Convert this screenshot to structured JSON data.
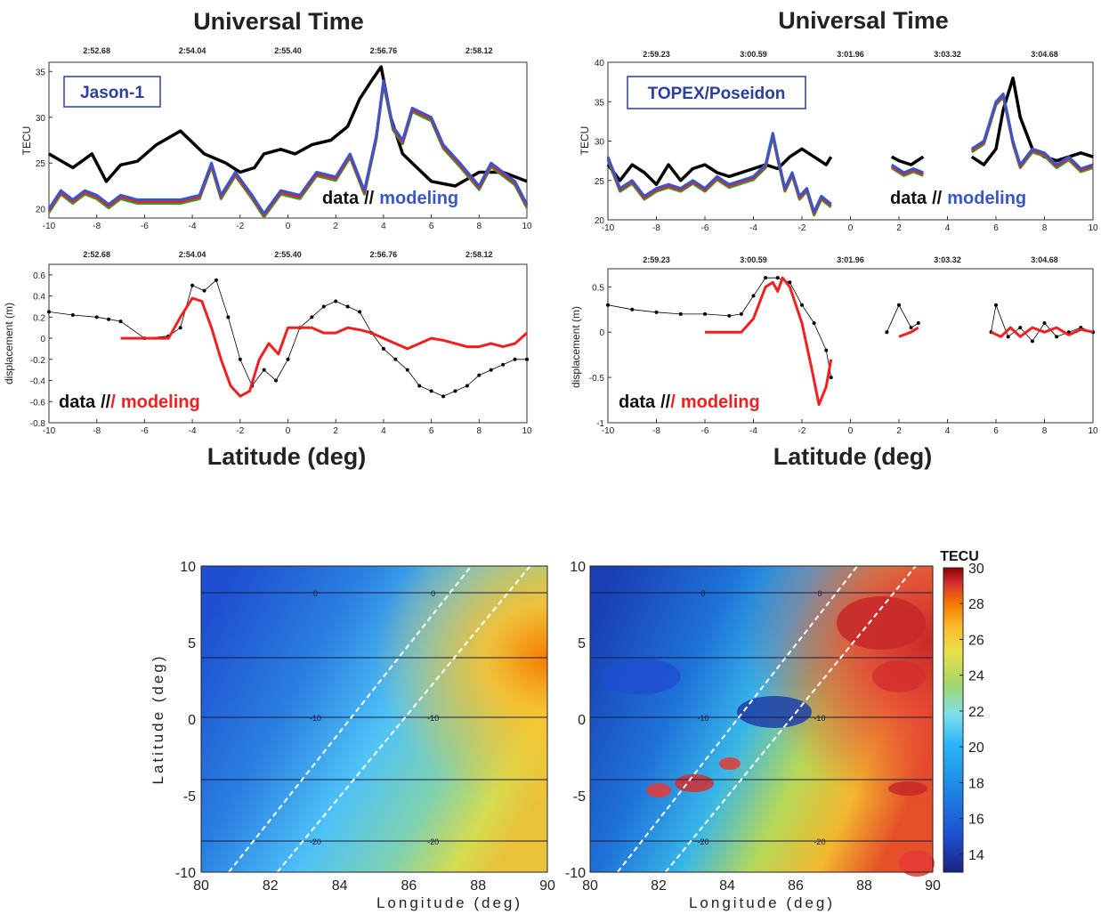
{
  "panels": [
    {
      "title": "Universal Time",
      "xlabel": "Latitude (deg)",
      "satellite": "Jason-1",
      "ut_ticks": [
        "2:52.68",
        "2:54.04",
        "2:55.40",
        "2:56.76",
        "2:58.12"
      ],
      "tec": {
        "ylabel": "TECU",
        "yticks": [
          "20",
          "25",
          "30",
          "35"
        ],
        "ylim": [
          19,
          36
        ],
        "legend": {
          "data": "data",
          "sep": "//",
          "sep2": "/",
          "model": "modeling"
        }
      },
      "disp": {
        "ylabel": "displacement (m)",
        "yticks": [
          "-0.8",
          "-0.6",
          "-0.4",
          "-0.2",
          "0",
          "0.2",
          "0.4",
          "0.6"
        ],
        "ylim": [
          -0.8,
          0.7
        ],
        "legend": {
          "data": "data",
          "sep": "//",
          "sep2": "/",
          "model": "modeling"
        }
      },
      "xticks": [
        "-10",
        "-8",
        "-6",
        "-4",
        "-2",
        "0",
        "2",
        "4",
        "6",
        "8",
        "10"
      ]
    },
    {
      "title": "Universal Time",
      "xlabel": "Latitude (deg)",
      "satellite": "TOPEX/Poseidon",
      "ut_ticks": [
        "2:59.23",
        "3:00.59",
        "3:01.96",
        "3:03.32",
        "3:04.68"
      ],
      "tec": {
        "ylabel": "TECU",
        "yticks": [
          "20",
          "25",
          "30",
          "35",
          "40"
        ],
        "ylim": [
          20,
          40
        ],
        "legend": {
          "data": "data",
          "sep": "//",
          "sep2": "/",
          "model": "modeling"
        }
      },
      "disp": {
        "ylabel": "displacement (m)",
        "yticks": [
          "-1",
          "-0.5",
          "0",
          "0.5"
        ],
        "ylim": [
          -1,
          0.7
        ],
        "legend": {
          "data": "data",
          "sep": "//",
          "sep2": "/",
          "model": "modeling"
        }
      },
      "xticks": [
        "-10",
        "-8",
        "-6",
        "-4",
        "-2",
        "0",
        "2",
        "4",
        "6",
        "8",
        "10"
      ]
    }
  ],
  "maps": {
    "ylabel": "Latitude (deg)",
    "xlabel": "Longitude (deg)",
    "yticks": [
      "10",
      "5",
      "0",
      "-5",
      "-10"
    ],
    "xticks": [
      "80",
      "82",
      "84",
      "86",
      "88",
      "90"
    ],
    "contour_labels": [
      "0",
      "-10",
      "-20"
    ],
    "colorbar": {
      "title": "TECU",
      "ticks": [
        "30",
        "28",
        "26",
        "24",
        "22",
        "20",
        "18",
        "16",
        "14"
      ],
      "range": [
        13,
        30
      ],
      "colors": [
        "#1a237e",
        "#1e4fd0",
        "#1e88e5",
        "#29b6f6",
        "#4dd0e1",
        "#80deea",
        "#a5d66a",
        "#e6e04a",
        "#fbc02d",
        "#f57c00",
        "#d32f2f",
        "#8b0000"
      ]
    }
  },
  "series_colors": {
    "data": "#000000",
    "model_red": "#f02020",
    "model_green": "#2ca02c",
    "model_blue": "#3a55c9"
  },
  "chart_data": [
    {
      "type": "line",
      "satellite": "Jason-1",
      "xlabel": "Latitude (deg)",
      "ylabel": "TECU",
      "xlim": [
        -10,
        10
      ],
      "ylim": [
        19,
        36
      ],
      "series": [
        {
          "name": "data",
          "x": [
            -10,
            -9,
            -8.2,
            -7.6,
            -7,
            -6.3,
            -5.5,
            -4.5,
            -3.5,
            -2.6,
            -2,
            -1.4,
            -1,
            -0.3,
            0.3,
            1,
            1.8,
            2.5,
            3,
            3.5,
            3.9,
            4.3,
            4.8,
            5,
            6,
            7,
            8,
            9,
            10
          ],
          "y": [
            26,
            24.5,
            26,
            23,
            24.8,
            25.2,
            27,
            28.5,
            26,
            25,
            24,
            24.5,
            26,
            26.5,
            26,
            27,
            27.5,
            29,
            32,
            34,
            35.5,
            30,
            26,
            25.5,
            23,
            22.5,
            24,
            24,
            23
          ]
        },
        {
          "name": "modeling",
          "x": [
            -10,
            -9.5,
            -9,
            -8.5,
            -8,
            -7.5,
            -7,
            -6.3,
            -5.5,
            -4.5,
            -3.7,
            -3.2,
            -2.8,
            -2.2,
            -1.5,
            -1,
            -0.3,
            0.5,
            1.2,
            2,
            2.6,
            3.2,
            3.7,
            4,
            4.4,
            4.8,
            5.2,
            6,
            6.5,
            7.2,
            8,
            8.5,
            9,
            9.5,
            10
          ],
          "y": [
            20,
            22,
            21,
            22,
            21.5,
            20.5,
            21.5,
            21,
            21,
            21,
            21.5,
            25,
            21.5,
            24,
            21.5,
            19.5,
            22,
            21.5,
            24,
            23.5,
            26,
            22,
            28,
            34,
            29,
            27.5,
            31,
            30,
            27,
            25,
            22.5,
            25,
            24,
            23,
            20.5
          ]
        }
      ]
    },
    {
      "type": "line",
      "satellite": "Jason-1",
      "xlabel": "Latitude (deg)",
      "ylabel": "displacement (m)",
      "xlim": [
        -10,
        10
      ],
      "ylim": [
        -0.8,
        0.7
      ],
      "series": [
        {
          "name": "data",
          "x": [
            -10,
            -9,
            -8,
            -7.5,
            -7,
            -6,
            -5,
            -4.5,
            -4,
            -3.5,
            -3,
            -2.5,
            -2,
            -1.5,
            -1,
            -0.5,
            0,
            0.5,
            1,
            1.5,
            2,
            2.5,
            3,
            3.5,
            4,
            4.5,
            5,
            5.5,
            6,
            6.5,
            7,
            7.5,
            8,
            8.5,
            9,
            9.5,
            10
          ],
          "y": [
            0.25,
            0.22,
            0.2,
            0.18,
            0.16,
            0.0,
            0.02,
            0.1,
            0.5,
            0.45,
            0.55,
            0.2,
            -0.2,
            -0.45,
            -0.3,
            -0.4,
            -0.2,
            0.1,
            0.2,
            0.3,
            0.35,
            0.3,
            0.25,
            0.05,
            -0.1,
            -0.2,
            -0.3,
            -0.45,
            -0.5,
            -0.55,
            -0.5,
            -0.45,
            -0.35,
            -0.3,
            -0.25,
            -0.2,
            -0.2
          ]
        },
        {
          "name": "modeling",
          "x": [
            -10,
            -7,
            -6.2,
            -5,
            -4.5,
            -4,
            -3.6,
            -3.2,
            -2.8,
            -2.4,
            -2,
            -1.6,
            -1.2,
            -0.8,
            -0.4,
            0,
            0.5,
            1,
            1.5,
            2,
            2.5,
            3,
            3.5,
            4,
            4.5,
            5,
            5.5,
            6,
            6.5,
            7,
            7.5,
            8,
            8.5,
            9,
            9.5,
            10
          ],
          "y": [
            0.0,
            0.0,
            0.0,
            0.0,
            0.2,
            0.38,
            0.35,
            0.1,
            -0.2,
            -0.45,
            -0.55,
            -0.5,
            -0.2,
            -0.05,
            -0.15,
            0.1,
            0.1,
            0.1,
            0.05,
            0.05,
            0.1,
            0.08,
            0.05,
            0.0,
            -0.05,
            -0.1,
            -0.05,
            0.0,
            -0.02,
            -0.05,
            -0.08,
            -0.08,
            -0.05,
            -0.08,
            -0.05,
            0.05
          ]
        }
      ]
    },
    {
      "type": "line",
      "satellite": "TOPEX/Poseidon",
      "xlabel": "Latitude (deg)",
      "ylabel": "TECU",
      "xlim": [
        -10,
        10
      ],
      "ylim": [
        20,
        40
      ],
      "series": [
        {
          "name": "data",
          "x": [
            -10,
            -9.5,
            -9,
            -8.5,
            -8,
            -7.5,
            -7,
            -6.5,
            -6,
            -5.5,
            -5,
            -4.5,
            -4,
            -3.5,
            -3,
            -2.5,
            -2,
            -1.5,
            -1,
            -0.8,
            1.7,
            2,
            2.5,
            3,
            5,
            5.5,
            6,
            6.3,
            6.7,
            7,
            7.5,
            8,
            8.5,
            9,
            9.5,
            10
          ],
          "y": [
            27,
            25,
            27,
            26,
            24.5,
            27,
            25,
            26.5,
            27,
            26,
            25.5,
            26,
            26.5,
            27,
            26.5,
            28,
            29,
            28,
            27,
            28,
            28,
            27.5,
            27,
            28,
            28,
            27,
            29,
            34,
            38,
            33,
            29,
            28,
            27.5,
            28,
            28.5,
            28
          ]
        },
        {
          "name": "modeling",
          "x": [
            -10,
            -9.5,
            -9,
            -8.5,
            -8,
            -7.5,
            -7,
            -6.5,
            -6,
            -5.5,
            -5,
            -4.5,
            -4,
            -3.5,
            -3.2,
            -3,
            -2.7,
            -2.4,
            -2.1,
            -1.8,
            -1.5,
            -1.2,
            -0.8,
            1.7,
            2.2,
            2.6,
            3,
            5,
            5.5,
            6,
            6.3,
            6.7,
            7,
            7.5,
            8,
            8.5,
            9,
            9.5,
            10
          ],
          "y": [
            28,
            24,
            25,
            23,
            24,
            24.5,
            24,
            25,
            24,
            25.5,
            24.5,
            25,
            25.5,
            27,
            31,
            28,
            24,
            26,
            23,
            24,
            21,
            23,
            22,
            27,
            26,
            26.5,
            26,
            29,
            30,
            35,
            36,
            30,
            27,
            29,
            28.5,
            27,
            28,
            26.5,
            27
          ]
        }
      ]
    },
    {
      "type": "line",
      "satellite": "TOPEX/Poseidon",
      "xlabel": "Latitude (deg)",
      "ylabel": "displacement (m)",
      "xlim": [
        -10,
        10
      ],
      "ylim": [
        -1,
        0.7
      ],
      "series": [
        {
          "name": "data",
          "x": [
            -10,
            -9,
            -8,
            -7,
            -6,
            -5,
            -4.5,
            -4,
            -3.5,
            -3,
            -2.5,
            -2,
            -1.5,
            -1,
            -0.8,
            1.5,
            2,
            2.5,
            2.8,
            5.8,
            6,
            6.5,
            7,
            7.5,
            8,
            8.5,
            9,
            9.5,
            10
          ],
          "y": [
            0.3,
            0.25,
            0.22,
            0.2,
            0.2,
            0.18,
            0.2,
            0.4,
            0.6,
            0.6,
            0.55,
            0.3,
            0.1,
            -0.2,
            -0.5,
            0.0,
            0.3,
            0.05,
            0.1,
            0.0,
            0.3,
            -0.05,
            0.05,
            -0.1,
            0.1,
            -0.05,
            0.0,
            0.05,
            0.0
          ]
        },
        {
          "name": "modeling",
          "x": [
            -10,
            -8,
            -6,
            -4.5,
            -4,
            -3.5,
            -3.2,
            -3,
            -2.8,
            -2.5,
            -2,
            -1.6,
            -1.3,
            -1,
            -0.8,
            2,
            2.5,
            2.8,
            5.8,
            6.2,
            6.6,
            7,
            7.5,
            8,
            8.5,
            9,
            9.5,
            10
          ],
          "y": [
            0.0,
            0.0,
            0.0,
            0.0,
            0.15,
            0.5,
            0.55,
            0.45,
            0.6,
            0.5,
            0.1,
            -0.4,
            -0.8,
            -0.6,
            -0.3,
            -0.05,
            0.0,
            0.05,
            0.0,
            -0.05,
            0.05,
            -0.05,
            0.05,
            0.0,
            0.05,
            -0.03,
            0.03,
            0.0
          ]
        }
      ]
    },
    {
      "type": "heatmap",
      "xlabel": "Longitude (deg)",
      "ylabel": "Latitude (deg)",
      "xlim": [
        80,
        90
      ],
      "ylim": [
        -10,
        10
      ],
      "colorbar": "TECU",
      "vlim": [
        13,
        30
      ],
      "contour_levels": [
        0,
        -10,
        -20
      ]
    },
    {
      "type": "heatmap",
      "xlabel": "Longitude (deg)",
      "ylabel": "Latitude (deg)",
      "xlim": [
        80,
        90
      ],
      "ylim": [
        -10,
        10
      ],
      "colorbar": "TECU",
      "vlim": [
        13,
        30
      ],
      "contour_levels": [
        0,
        -10,
        -20
      ]
    }
  ]
}
